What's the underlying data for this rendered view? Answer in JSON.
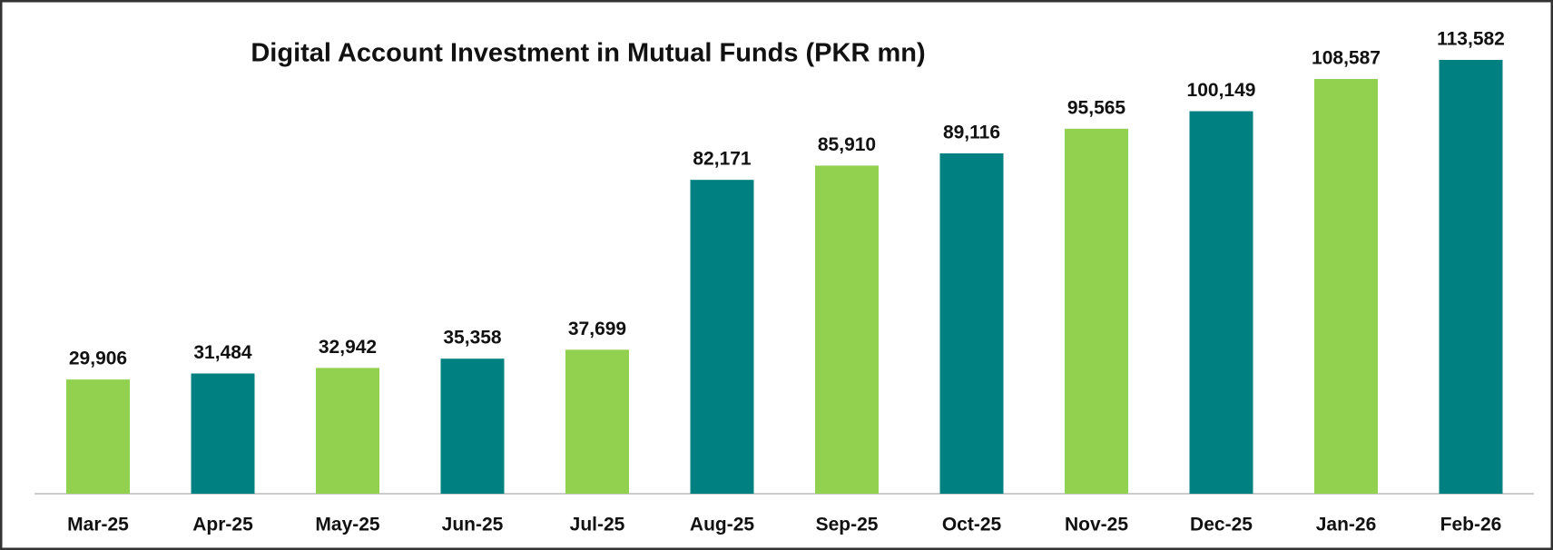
{
  "chart_data": {
    "type": "bar",
    "title": "Digital Account Investment in Mutual Funds (PKR mn)",
    "categories": [
      "Mar-25",
      "Apr-25",
      "May-25",
      "Jun-25",
      "Jul-25",
      "Aug-25",
      "Sep-25",
      "Oct-25",
      "Nov-25",
      "Dec-25",
      "Jan-26",
      "Feb-26"
    ],
    "values": [
      29906,
      31484,
      32942,
      35358,
      37699,
      82171,
      85910,
      89116,
      95565,
      100149,
      108587,
      113582
    ],
    "value_labels": [
      "29,906",
      "31,484",
      "32,942",
      "35,358",
      "37,699",
      "82,171",
      "85,910",
      "89,116",
      "95,565",
      "100,149",
      "108,587",
      "113,582"
    ],
    "colors": [
      "#92d050",
      "#008080",
      "#92d050",
      "#008080",
      "#92d050",
      "#008080",
      "#92d050",
      "#008080",
      "#92d050",
      "#008080",
      "#92d050",
      "#008080"
    ]
  }
}
